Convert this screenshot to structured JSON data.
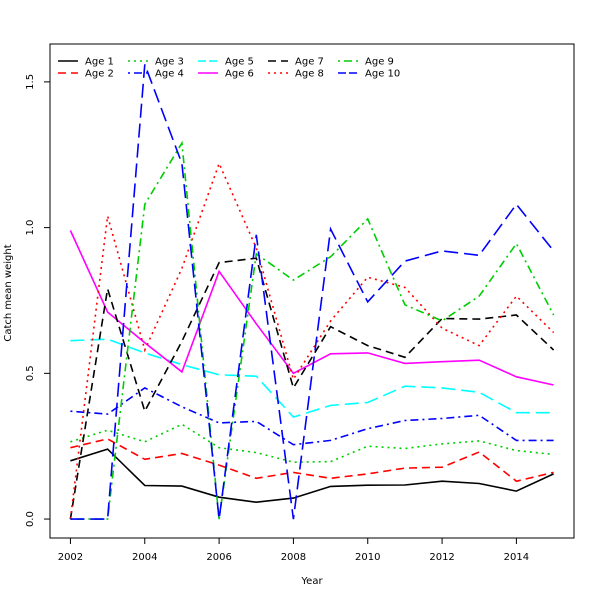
{
  "chart_data": {
    "type": "line",
    "title": "",
    "xlabel": "Year",
    "ylabel": "Catch mean weight",
    "xlim": [
      2001.45,
      2015.55
    ],
    "ylim": [
      -0.065,
      1.63
    ],
    "x_ticks": [
      2002,
      2004,
      2006,
      2008,
      2010,
      2012,
      2014
    ],
    "y_ticks": [
      0.0,
      0.5,
      1.0,
      1.5
    ],
    "y_tick_labels": [
      "0.0",
      "0.5",
      "1.0",
      "1.5"
    ],
    "grid": false,
    "legend_position": "top-left",
    "x": [
      2002,
      2003,
      2004,
      2005,
      2006,
      2007,
      2008,
      2009,
      2010,
      2011,
      2012,
      2013,
      2014,
      2015
    ],
    "series": [
      {
        "name": "Age 1",
        "color": "#000000",
        "dash": "solid",
        "values": [
          0.2,
          0.24,
          0.115,
          0.113,
          0.075,
          0.058,
          0.072,
          0.112,
          0.116,
          0.117,
          0.13,
          0.122,
          0.096,
          0.155
        ]
      },
      {
        "name": "Age 2",
        "color": "#ff0000",
        "dash": "dashed",
        "values": [
          0.245,
          0.275,
          0.205,
          0.225,
          0.185,
          0.14,
          0.16,
          0.14,
          0.155,
          0.175,
          0.178,
          0.23,
          0.13,
          0.16
        ]
      },
      {
        "name": "Age 3",
        "color": "#00cd00",
        "dash": "dotted",
        "values": [
          0.265,
          0.305,
          0.265,
          0.325,
          0.245,
          0.228,
          0.195,
          0.197,
          0.25,
          0.242,
          0.258,
          0.268,
          0.235,
          0.222
        ]
      },
      {
        "name": "Age 4",
        "color": "#0000ff",
        "dash": "dotdash",
        "values": [
          0.37,
          0.36,
          0.45,
          0.385,
          0.33,
          0.335,
          0.255,
          0.27,
          0.31,
          0.338,
          0.345,
          0.356,
          0.27,
          0.27
        ]
      },
      {
        "name": "Age 5",
        "color": "#00ffff",
        "dash": "longdash",
        "values": [
          0.612,
          0.617,
          0.57,
          0.53,
          0.495,
          0.49,
          0.35,
          0.39,
          0.4,
          0.456,
          0.45,
          0.435,
          0.365,
          0.365
        ]
      },
      {
        "name": "Age 6",
        "color": "#ff00ff",
        "dash": "solid",
        "values": [
          0.99,
          0.71,
          0.605,
          0.505,
          0.85,
          0.67,
          0.5,
          0.567,
          0.57,
          0.534,
          0.54,
          0.545,
          0.488,
          0.46
        ]
      },
      {
        "name": "Age 7",
        "color": "#000000",
        "dash": "dashed",
        "values": [
          0.0,
          0.79,
          0.37,
          0.61,
          0.88,
          0.895,
          0.45,
          0.66,
          0.595,
          0.555,
          0.688,
          0.686,
          0.7,
          0.58
        ]
      },
      {
        "name": "Age 8",
        "color": "#ff0000",
        "dash": "dotted",
        "values": [
          0.0,
          1.04,
          0.58,
          0.86,
          1.22,
          0.93,
          0.48,
          0.68,
          0.83,
          0.795,
          0.655,
          0.595,
          0.765,
          0.64
        ]
      },
      {
        "name": "Age 9",
        "color": "#00cd00",
        "dash": "dotdash",
        "values": [
          0.0,
          0.0,
          1.08,
          1.29,
          0.0,
          0.91,
          0.82,
          0.9,
          1.03,
          0.735,
          0.68,
          0.765,
          0.945,
          0.7
        ]
      },
      {
        "name": "Age 10",
        "color": "#0000ff",
        "dash": "longdash",
        "values": [
          0.0,
          0.0,
          1.56,
          1.22,
          0.0,
          0.975,
          0.0,
          0.995,
          0.745,
          0.885,
          0.92,
          0.905,
          1.08,
          0.92
        ]
      }
    ]
  }
}
